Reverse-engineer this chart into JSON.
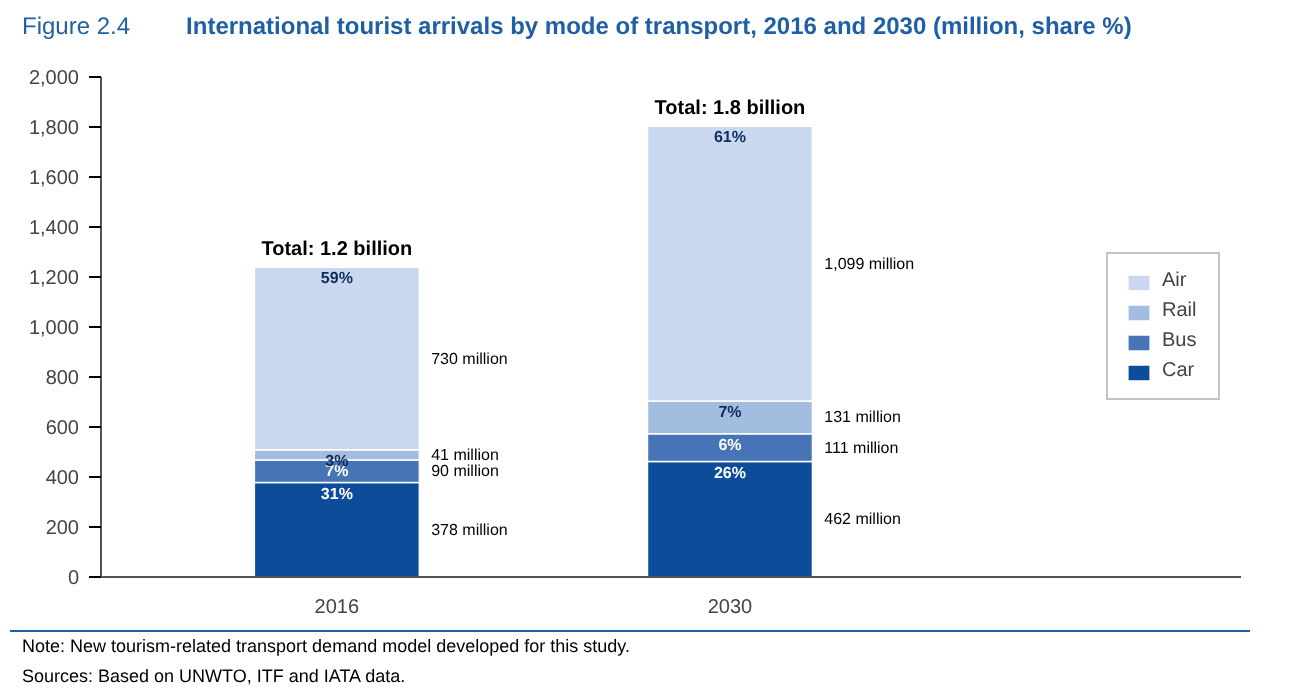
{
  "chart_data": {
    "type": "bar",
    "stacked": true,
    "title": "International tourist arrivals by mode of transport, 2016 and 2030 (million, share %)",
    "categories": [
      "2016",
      "2030"
    ],
    "series": [
      {
        "name": "Car",
        "color": "#0d4c9a",
        "values": [
          378,
          462
        ]
      },
      {
        "name": "Bus",
        "color": "#4674b6",
        "values": [
          90,
          111
        ]
      },
      {
        "name": "Rail",
        "color": "#a3bde0",
        "values": [
          41,
          131
        ]
      },
      {
        "name": "Air",
        "color": "#c9d8ee",
        "values": [
          730,
          1099
        ]
      }
    ],
    "totals": [
      "Total: 1.2 billion",
      "Total: 1.8 billion"
    ],
    "ylim": [
      0,
      2000
    ],
    "yticks": [
      0,
      200,
      400,
      600,
      800,
      {
        "value": 1000,
        "label": "1,000"
      },
      {
        "value": 1200,
        "label": "1,200"
      },
      {
        "value": 1400,
        "label": "1,400"
      },
      {
        "value": 1600,
        "label": "1,600"
      },
      {
        "value": 1800,
        "label": "1,800"
      },
      {
        "value": 2000,
        "label": "2,000"
      }
    ],
    "grid": false,
    "legend": "right",
    "annotations": [
      "Figure 2.4",
      {
        "text": "31%",
        "x": "2016",
        "y": 378
      },
      {
        "text": "7%",
        "x": "2016",
        "y": 468
      },
      {
        "text": "3%",
        "x": "2016",
        "y": 509
      },
      {
        "text": "59%",
        "x": "2016",
        "y": 1239
      },
      {
        "text": "26%",
        "x": "2030",
        "y": 462
      },
      {
        "text": "6%",
        "x": "2030",
        "y": 573
      },
      {
        "text": "7%",
        "x": "2030",
        "y": 704
      },
      {
        "text": "61%",
        "x": "2030",
        "y": 1803
      },
      "378 million",
      "90 million",
      "41 million",
      "730 million",
      "462 million",
      "111 million",
      "131 million",
      "1,099 million",
      "Note:     New tourism-related transport demand model developed for this study.",
      "Sources: Based on UNWTO, ITF and IATA data."
    ]
  }
}
